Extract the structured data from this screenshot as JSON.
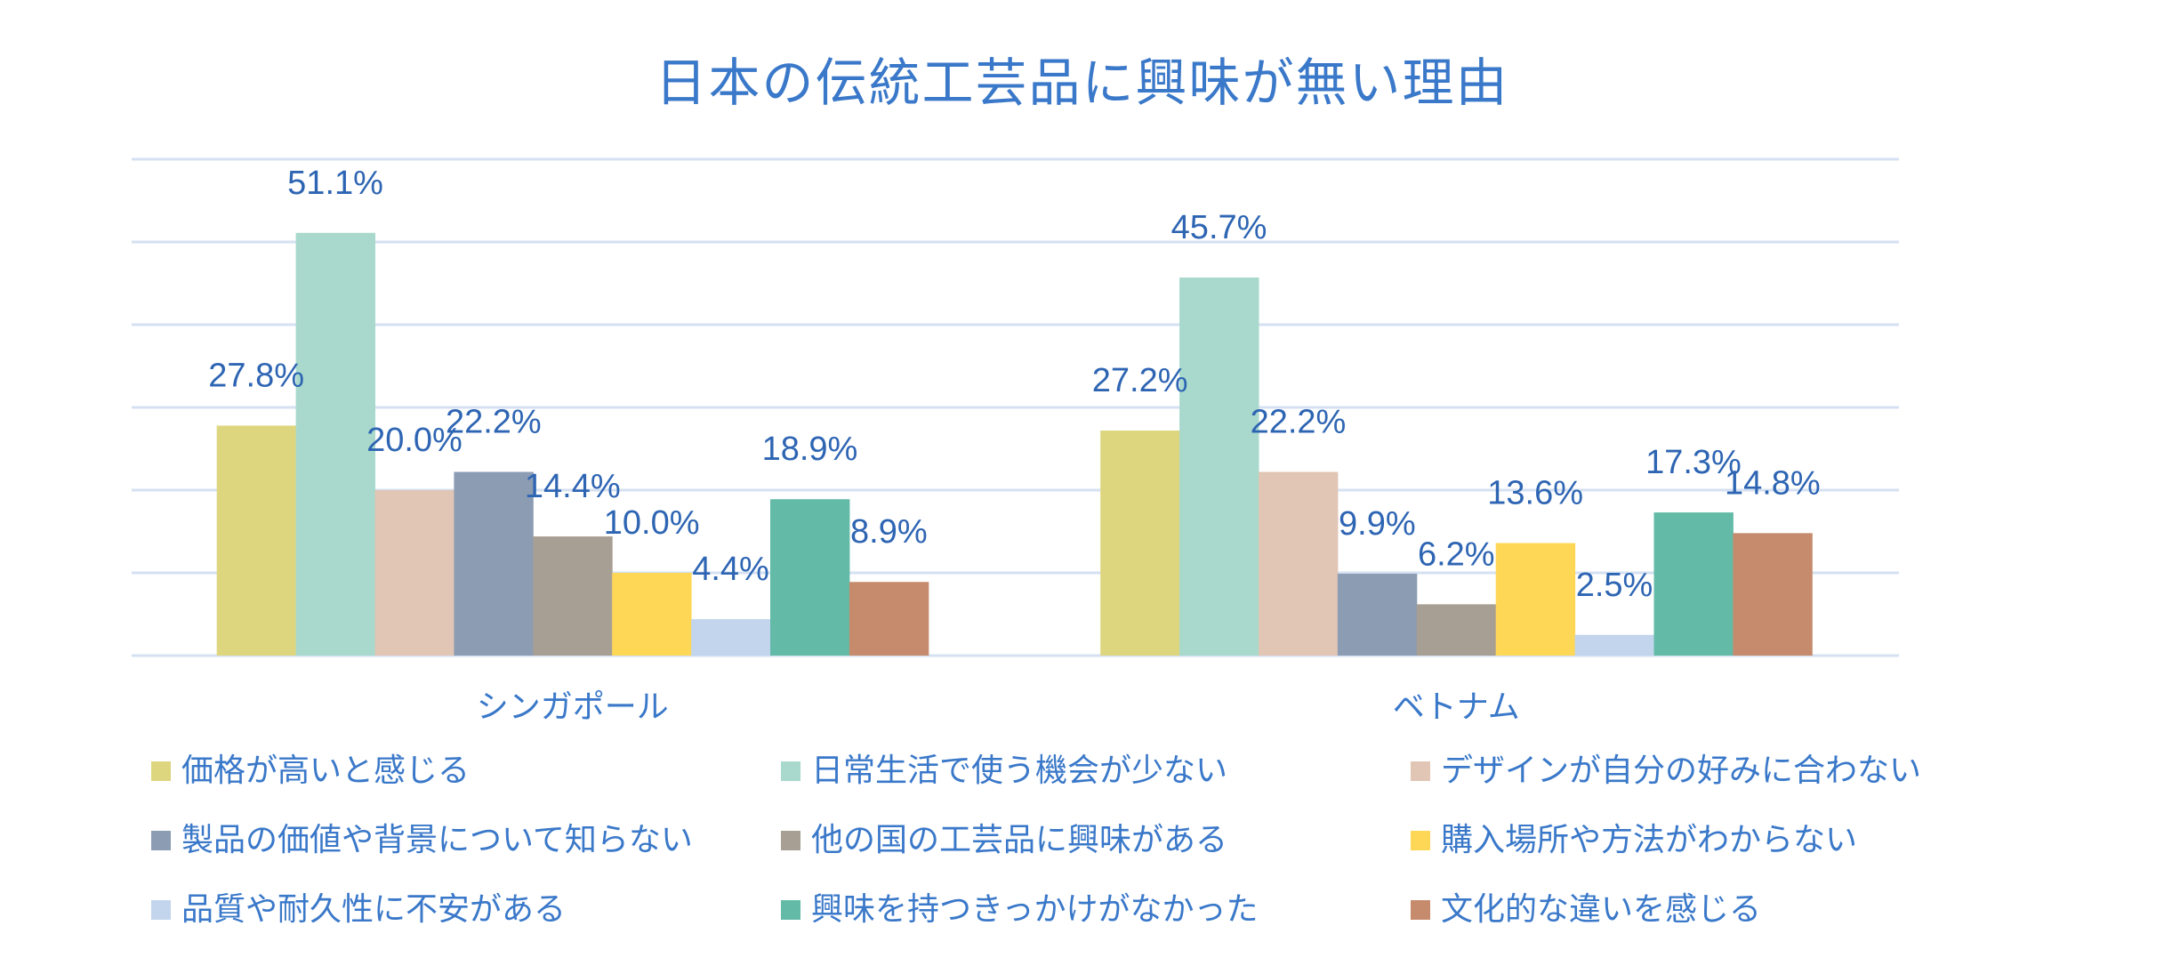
{
  "chart_data": {
    "type": "bar",
    "title": "日本の伝統工芸品に興味が無い理由",
    "xlabel": "",
    "ylabel": "",
    "ylim": [
      0,
      60
    ],
    "ytick_step": 10,
    "y_tick_labels_shown": false,
    "grid": true,
    "legend_position": "bottom",
    "categories": [
      "シンガポール",
      "ベトナム"
    ],
    "series": [
      {
        "name": "価格が高いと感じる",
        "color": "#DDD67E",
        "values": [
          27.8,
          27.2
        ],
        "labels": [
          "27.8%",
          "27.2%"
        ]
      },
      {
        "name": "日常生活で使う機会が少ない",
        "color": "#A8D9CC",
        "values": [
          51.1,
          45.7
        ],
        "labels": [
          "51.1%",
          "45.7%"
        ]
      },
      {
        "name": "デザインが自分の好みに合わない",
        "color": "#E1C5B5",
        "values": [
          20.0,
          22.2
        ],
        "labels": [
          "20.0%",
          "22.2%"
        ]
      },
      {
        "name": "製品の価値や背景について知らない",
        "color": "#8C9CB3",
        "values": [
          22.2,
          9.9
        ],
        "labels": [
          "22.2%",
          "9.9%"
        ]
      },
      {
        "name": "他の国の工芸品に興味がある",
        "color": "#A89F94",
        "values": [
          14.4,
          6.2
        ],
        "labels": [
          "14.4%",
          "6.2%"
        ]
      },
      {
        "name": "購入場所や方法がわからない",
        "color": "#FFD757",
        "values": [
          10.0,
          13.6
        ],
        "labels": [
          "10.0%",
          "13.6%"
        ]
      },
      {
        "name": "品質や耐久性に不安がある",
        "color": "#C2D5EC",
        "values": [
          4.4,
          2.5
        ],
        "labels": [
          "4.4%",
          "2.5%"
        ]
      },
      {
        "name": "興味を持つきっかけがなかった",
        "color": "#63BBA7",
        "values": [
          18.9,
          17.3
        ],
        "labels": [
          "18.9%",
          "17.3%"
        ]
      },
      {
        "name": "文化的な違いを感じる",
        "color": "#C68B6C",
        "values": [
          8.9,
          14.8
        ],
        "labels": [
          "8.9%",
          "14.8%"
        ]
      }
    ]
  },
  "colors": {
    "title": "#3A78C9",
    "data_label": "#2E65B3",
    "gridline": "#D5E1F2"
  }
}
